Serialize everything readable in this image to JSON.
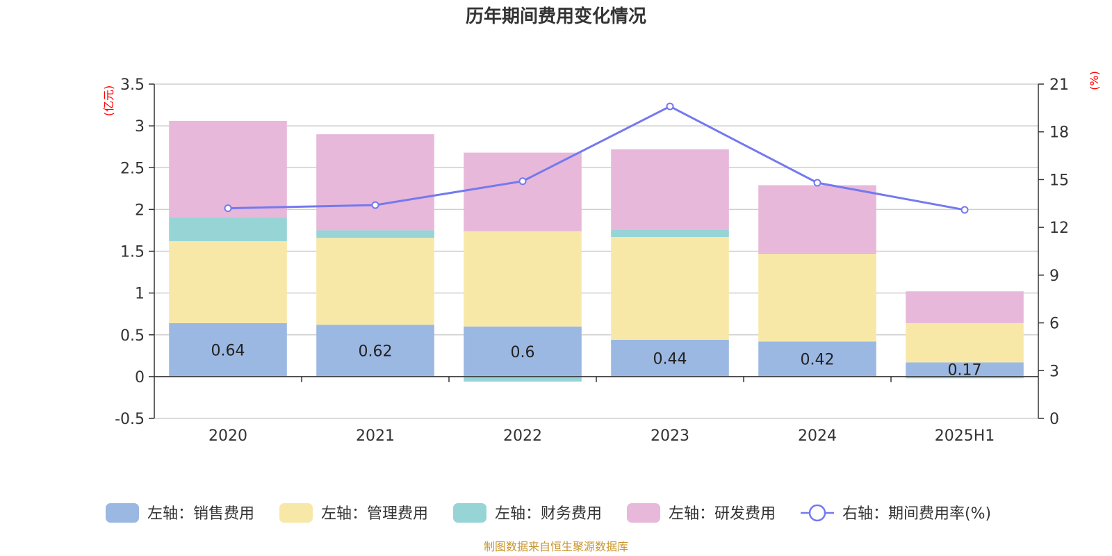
{
  "chart_data": {
    "type": "bar",
    "title": "历年期间费用变化情况",
    "categories": [
      "2020",
      "2021",
      "2022",
      "2023",
      "2024",
      "2025H1"
    ],
    "left_axis": {
      "unit": "(亿元)",
      "ylim": [
        -0.5,
        3.5
      ],
      "ticks": [
        "3.5",
        "3",
        "2.5",
        "2",
        "1.5",
        "1",
        "0.5",
        "0",
        "-0.5"
      ]
    },
    "right_axis": {
      "unit": "(%)",
      "ylim": [
        0,
        21
      ],
      "ticks": [
        "21",
        "18",
        "15",
        "12",
        "9",
        "6",
        "3",
        "0"
      ]
    },
    "series": [
      {
        "name": "左轴：销售费用",
        "axis": "left",
        "stack": true,
        "color": "#9bb8e2",
        "values": [
          0.64,
          0.62,
          0.6,
          0.44,
          0.42,
          0.17
        ],
        "labels": [
          "0.64",
          "0.62",
          "0.6",
          "0.44",
          "0.42",
          "0.17"
        ]
      },
      {
        "name": "左轴：管理费用",
        "axis": "left",
        "stack": true,
        "color": "#f8e8a8",
        "values": [
          0.98,
          1.04,
          1.14,
          1.23,
          1.05,
          0.47
        ]
      },
      {
        "name": "左轴：财务费用",
        "axis": "left",
        "stack": true,
        "color": "#97d4d6",
        "values": [
          0.29,
          0.09,
          -0.06,
          0.09,
          0.01,
          -0.02
        ]
      },
      {
        "name": "左轴：研发费用",
        "axis": "left",
        "stack": true,
        "color": "#e7b8da",
        "values": [
          1.15,
          1.15,
          0.94,
          0.96,
          0.81,
          0.38
        ]
      },
      {
        "name": "右轴：期间费用率(%)",
        "axis": "right",
        "type": "line",
        "color": "#7479ee",
        "values": [
          13.2,
          13.4,
          14.9,
          19.6,
          14.8,
          13.1
        ]
      }
    ],
    "grid": true,
    "legend_position": "bottom"
  },
  "source_note": "制图数据来自恒生聚源数据库"
}
